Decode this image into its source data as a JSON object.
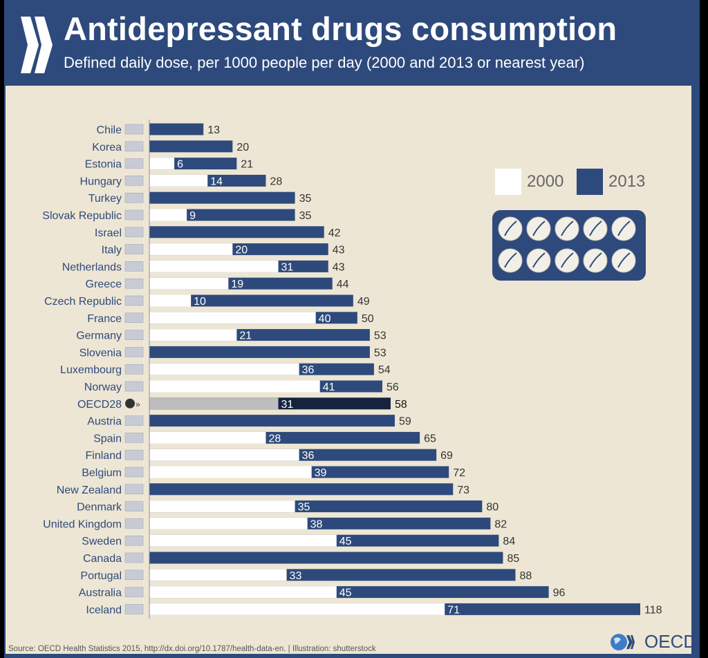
{
  "header": {
    "title": "Antidepressant drugs consumption",
    "subtitle": "Defined daily dose, per 1000 people per day (2000 and 2013 or nearest year)"
  },
  "footer": {
    "source": "Source: OECD Health Statistics 2015, http://dx.doi.org/10.1787/health-data-en. | Illustration: shutterstock",
    "logo_text": "OECD"
  },
  "colors": {
    "bar_2013": "#2e4a7c",
    "bar_2000": "#ffffff",
    "oecd_2013": "#14243f",
    "oecd_2000": "#bdbdbd",
    "background": "#ede6d4",
    "label": "#2e4a7c"
  },
  "chart_data": {
    "type": "bar",
    "orientation": "horizontal",
    "title": "Antidepressant drugs consumption",
    "subtitle": "Defined daily dose, per 1000 people per day (2000 and 2013 or nearest year)",
    "xlabel": "",
    "ylabel": "",
    "xlim": [
      0,
      118
    ],
    "grid": false,
    "legend": {
      "position": "top-right",
      "entries": [
        "2000",
        "2013"
      ]
    },
    "categories": [
      "Chile",
      "Korea",
      "Estonia",
      "Hungary",
      "Turkey",
      "Slovak Republic",
      "Israel",
      "Italy",
      "Netherlands",
      "Greece",
      "Czech Republic",
      "France",
      "Germany",
      "Slovenia",
      "Luxembourg",
      "Norway",
      "OECD28",
      "Austria",
      "Spain",
      "Finland",
      "Belgium",
      "New Zealand",
      "Denmark",
      "United Kingdom",
      "Sweden",
      "Canada",
      "Portugal",
      "Australia",
      "Iceland"
    ],
    "series": [
      {
        "name": "2000",
        "values": [
          null,
          null,
          6,
          14,
          null,
          9,
          null,
          20,
          31,
          19,
          10,
          40,
          21,
          null,
          36,
          41,
          31,
          null,
          28,
          36,
          39,
          null,
          35,
          38,
          45,
          null,
          33,
          45,
          71
        ]
      },
      {
        "name": "2013",
        "values": [
          13,
          20,
          21,
          28,
          35,
          35,
          42,
          43,
          43,
          44,
          49,
          50,
          53,
          53,
          54,
          56,
          58,
          59,
          65,
          69,
          72,
          73,
          80,
          82,
          84,
          85,
          88,
          96,
          118
        ]
      }
    ],
    "highlight": "OECD28"
  }
}
